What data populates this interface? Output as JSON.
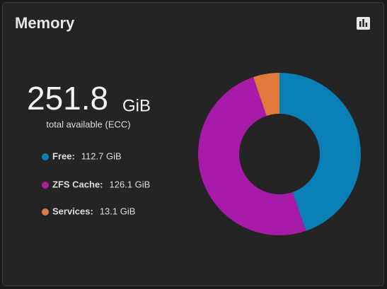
{
  "chart_data": {
    "type": "pie",
    "title": "Memory",
    "total": {
      "value": 251.8,
      "unit": "GiB",
      "caption": "total available (ECC)"
    },
    "categories": [
      "Free:",
      "ZFS Cache:",
      "Services:"
    ],
    "values": [
      112.7,
      126.1,
      13.1
    ],
    "value_labels": [
      "112.7 GiB",
      "126.1 GiB",
      "13.1 GiB"
    ],
    "colors": [
      "#0a7fb6",
      "#a81aa8",
      "#e07a3c"
    ],
    "donut": true
  }
}
